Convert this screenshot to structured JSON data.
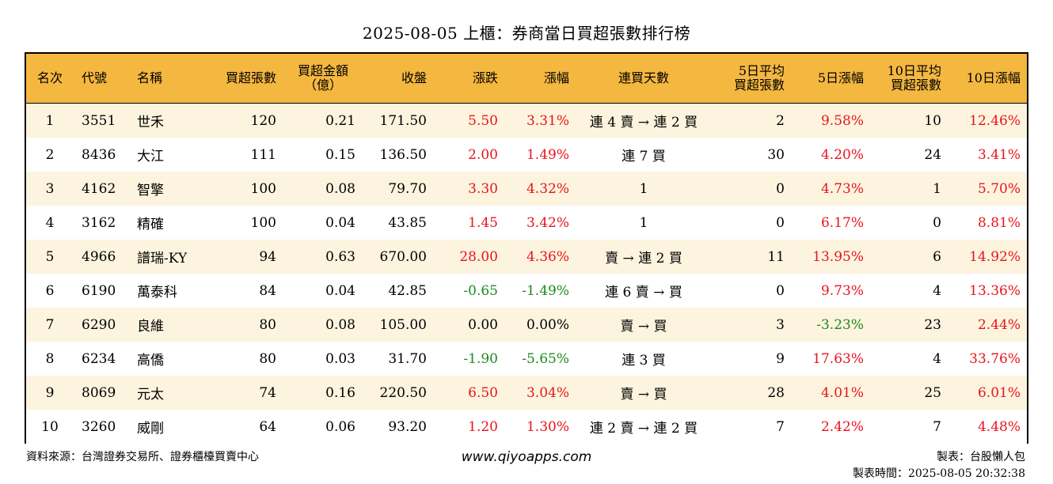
{
  "title": "2025-08-05 上櫃：券商當日買超張數排行榜",
  "headers": {
    "rank": "名次",
    "code": "代號",
    "name": "名稱",
    "buy_lots": "買超張數",
    "buy_amt_1": "買超金額",
    "buy_amt_2": "（億）",
    "close": "收盤",
    "change": "漲跌",
    "change_pct": "漲幅",
    "days": "連買天數",
    "avg5_1": "5日平均",
    "avg5_2": "買超張數",
    "pct5": "5日漲幅",
    "avg10_1": "10日平均",
    "avg10_2": "買超張數",
    "pct10": "10日漲幅"
  },
  "colors": {
    "header_bg": "#f4b740",
    "odd_row_bg": "#fdf4df",
    "positive": "#e8141b",
    "negative": "#1d8a1d"
  },
  "rows": [
    {
      "rank": "1",
      "code": "3551",
      "name": "世禾",
      "buy_lots": "120",
      "buy_amt": "0.21",
      "close": "171.50",
      "change": "5.50",
      "change_pct": "3.31%",
      "days": "連 4 賣 → 連 2 買",
      "avg5": "2",
      "pct5": "9.58%",
      "avg10": "10",
      "pct10": "12.46%"
    },
    {
      "rank": "2",
      "code": "8436",
      "name": "大江",
      "buy_lots": "111",
      "buy_amt": "0.15",
      "close": "136.50",
      "change": "2.00",
      "change_pct": "1.49%",
      "days": "連 7 買",
      "avg5": "30",
      "pct5": "4.20%",
      "avg10": "24",
      "pct10": "3.41%"
    },
    {
      "rank": "3",
      "code": "4162",
      "name": "智擎",
      "buy_lots": "100",
      "buy_amt": "0.08",
      "close": "79.70",
      "change": "3.30",
      "change_pct": "4.32%",
      "days": "1",
      "avg5": "0",
      "pct5": "4.73%",
      "avg10": "1",
      "pct10": "5.70%"
    },
    {
      "rank": "4",
      "code": "3162",
      "name": "精確",
      "buy_lots": "100",
      "buy_amt": "0.04",
      "close": "43.85",
      "change": "1.45",
      "change_pct": "3.42%",
      "days": "1",
      "avg5": "0",
      "pct5": "6.17%",
      "avg10": "0",
      "pct10": "8.81%"
    },
    {
      "rank": "5",
      "code": "4966",
      "name": "譜瑞-KY",
      "buy_lots": "94",
      "buy_amt": "0.63",
      "close": "670.00",
      "change": "28.00",
      "change_pct": "4.36%",
      "days": "賣 → 連 2 買",
      "avg5": "11",
      "pct5": "13.95%",
      "avg10": "6",
      "pct10": "14.92%"
    },
    {
      "rank": "6",
      "code": "6190",
      "name": "萬泰科",
      "buy_lots": "84",
      "buy_amt": "0.04",
      "close": "42.85",
      "change": "-0.65",
      "change_pct": "-1.49%",
      "days": "連 6 賣 → 買",
      "avg5": "0",
      "pct5": "9.73%",
      "avg10": "4",
      "pct10": "13.36%"
    },
    {
      "rank": "7",
      "code": "6290",
      "name": "良維",
      "buy_lots": "80",
      "buy_amt": "0.08",
      "close": "105.00",
      "change": "0.00",
      "change_pct": "0.00%",
      "days": "賣 → 買",
      "avg5": "3",
      "pct5": "-3.23%",
      "avg10": "23",
      "pct10": "2.44%"
    },
    {
      "rank": "8",
      "code": "6234",
      "name": "高僑",
      "buy_lots": "80",
      "buy_amt": "0.03",
      "close": "31.70",
      "change": "-1.90",
      "change_pct": "-5.65%",
      "days": "連 3 買",
      "avg5": "9",
      "pct5": "17.63%",
      "avg10": "4",
      "pct10": "33.76%"
    },
    {
      "rank": "9",
      "code": "8069",
      "name": "元太",
      "buy_lots": "74",
      "buy_amt": "0.16",
      "close": "220.50",
      "change": "6.50",
      "change_pct": "3.04%",
      "days": "賣 → 買",
      "avg5": "28",
      "pct5": "4.01%",
      "avg10": "25",
      "pct10": "6.01%"
    },
    {
      "rank": "10",
      "code": "3260",
      "name": "威剛",
      "buy_lots": "64",
      "buy_amt": "0.06",
      "close": "93.20",
      "change": "1.20",
      "change_pct": "1.30%",
      "days": "連 2 賣 → 連 2 買",
      "avg5": "7",
      "pct5": "2.42%",
      "avg10": "7",
      "pct10": "4.48%"
    }
  ],
  "footer": {
    "source": "資料來源：台灣證券交易所、證券櫃檯買賣中心",
    "site": "www.qiyoapps.com",
    "author": "製表：台股懶人包",
    "time": "製表時間：2025-08-05 20:32:38"
  }
}
